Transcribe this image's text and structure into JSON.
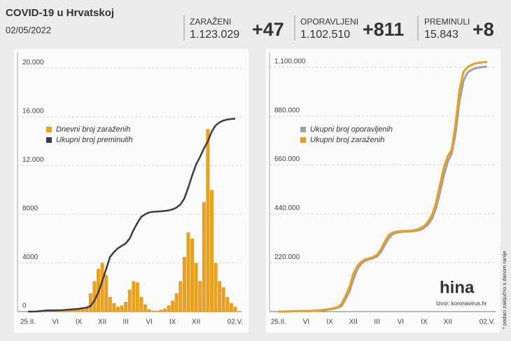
{
  "header": {
    "title": "COVID-19 u Hrvatskoj",
    "date": "02/05/2022",
    "stats": [
      {
        "label": "ZARAŽENI",
        "value": "1.123.029",
        "change": "+47"
      },
      {
        "label": "OPORAVLJENI",
        "value": "1.102.510",
        "change": "+811"
      },
      {
        "label": "PREMINULI",
        "value": "15.843",
        "change": "+8"
      }
    ]
  },
  "logo": "hina",
  "source": "Izvor: koronavirus.hr",
  "footnote": "* podaci zaključno s danom ranije",
  "chart_data": [
    {
      "type": "combo",
      "categories": [
        "25.II.",
        null,
        null,
        null,
        null,
        null,
        null,
        "VI",
        null,
        null,
        null,
        null,
        null,
        "IX",
        null,
        null,
        null,
        null,
        null,
        "XII",
        null,
        null,
        null,
        null,
        null,
        "III",
        null,
        null,
        null,
        null,
        null,
        "VI",
        null,
        null,
        null,
        null,
        null,
        "IX",
        null,
        null,
        null,
        null,
        null,
        "XII",
        null,
        null,
        null,
        null,
        null,
        null,
        null,
        null,
        null,
        "02.V."
      ],
      "ylim": [
        0,
        21000
      ],
      "yticks": [
        0,
        4000,
        8000,
        {
          "value": 12000,
          "label": "12.000"
        },
        {
          "value": 16000,
          "label": "16.000"
        },
        {
          "value": 20000,
          "label": "20.000"
        }
      ],
      "grid": true,
      "series": [
        {
          "name": "Dnevni broj zaraženih",
          "type": "bar",
          "color": "#e8a020",
          "values": [
            0,
            5,
            50,
            60,
            30,
            10,
            2,
            5,
            60,
            100,
            80,
            150,
            250,
            250,
            200,
            350,
            1500,
            2500,
            3500,
            4000,
            3000,
            1200,
            700,
            400,
            500,
            800,
            1800,
            2500,
            2400,
            1200,
            600,
            200,
            80,
            60,
            150,
            250,
            500,
            900,
            1500,
            2500,
            4500,
            6500,
            6000,
            4000,
            2500,
            9000,
            15000,
            10000,
            4000,
            2500,
            2000,
            1200,
            700,
            400
          ]
        },
        {
          "name": "Ukupni broj preminulih",
          "type": "line",
          "color": "#3d3a4b",
          "values": [
            0,
            1,
            5,
            30,
            70,
            95,
            103,
            105,
            110,
            120,
            150,
            170,
            200,
            230,
            280,
            330,
            450,
            900,
            1600,
            2500,
            3500,
            4500,
            4900,
            5200,
            5400,
            5600,
            6000,
            6700,
            7300,
            7800,
            8000,
            8150,
            8200,
            8220,
            8240,
            8270,
            8320,
            8400,
            8550,
            8800,
            9300,
            10200,
            11200,
            12100,
            12700,
            13400,
            14000,
            14800,
            15300,
            15550,
            15700,
            15780,
            15830,
            15843
          ]
        }
      ]
    },
    {
      "type": "line",
      "categories": [
        "25.II.",
        null,
        null,
        null,
        null,
        null,
        null,
        "VI",
        null,
        null,
        null,
        null,
        null,
        "IX",
        null,
        null,
        null,
        null,
        null,
        "XII",
        null,
        null,
        null,
        null,
        null,
        "III",
        null,
        null,
        null,
        null,
        null,
        "VI",
        null,
        null,
        null,
        null,
        null,
        "IX",
        null,
        null,
        null,
        null,
        null,
        "XII",
        null,
        null,
        null,
        null,
        null,
        null,
        null,
        null,
        null,
        "02.V."
      ],
      "ylim": [
        0,
        1150000
      ],
      "yticks": [
        {
          "value": 220000,
          "label": "220.000"
        },
        {
          "value": 440000,
          "label": "440.000"
        },
        {
          "value": 660000,
          "label": "660.000"
        },
        {
          "value": 880000,
          "label": "880.000"
        },
        {
          "value": 1100000,
          "label": "1.100.000"
        }
      ],
      "grid": true,
      "series": [
        {
          "name": "Ukupni broj oporavljenih",
          "color": "#a0a0a8",
          "values": [
            0,
            0,
            50,
            500,
            1500,
            2000,
            2150,
            2200,
            2300,
            3000,
            4000,
            5500,
            7500,
            10000,
            13000,
            17000,
            25000,
            55000,
            90000,
            145000,
            190000,
            215000,
            228000,
            235000,
            240000,
            248000,
            268000,
            300000,
            330000,
            348000,
            355000,
            358000,
            360000,
            360500,
            361000,
            364000,
            368000,
            377000,
            393000,
            418000,
            465000,
            535000,
            615000,
            675000,
            712000,
            805000,
            950000,
            1040000,
            1075000,
            1088000,
            1095000,
            1099000,
            1101000,
            1102510
          ]
        },
        {
          "name": "Ukupni broj zaraženih",
          "color": "#e8a020",
          "values": [
            0,
            100,
            900,
            1500,
            2000,
            2200,
            2250,
            2250,
            2500,
            4000,
            5000,
            6500,
            9000,
            12000,
            15000,
            20000,
            35000,
            70000,
            110000,
            170000,
            205000,
            225000,
            235000,
            240000,
            245000,
            255000,
            280000,
            315000,
            345000,
            355000,
            360000,
            362000,
            362500,
            363000,
            365000,
            368000,
            375000,
            385000,
            405000,
            435000,
            490000,
            570000,
            650000,
            700000,
            730000,
            850000,
            1000000,
            1080000,
            1100000,
            1110000,
            1117000,
            1120000,
            1122000,
            1123029
          ]
        }
      ]
    }
  ]
}
